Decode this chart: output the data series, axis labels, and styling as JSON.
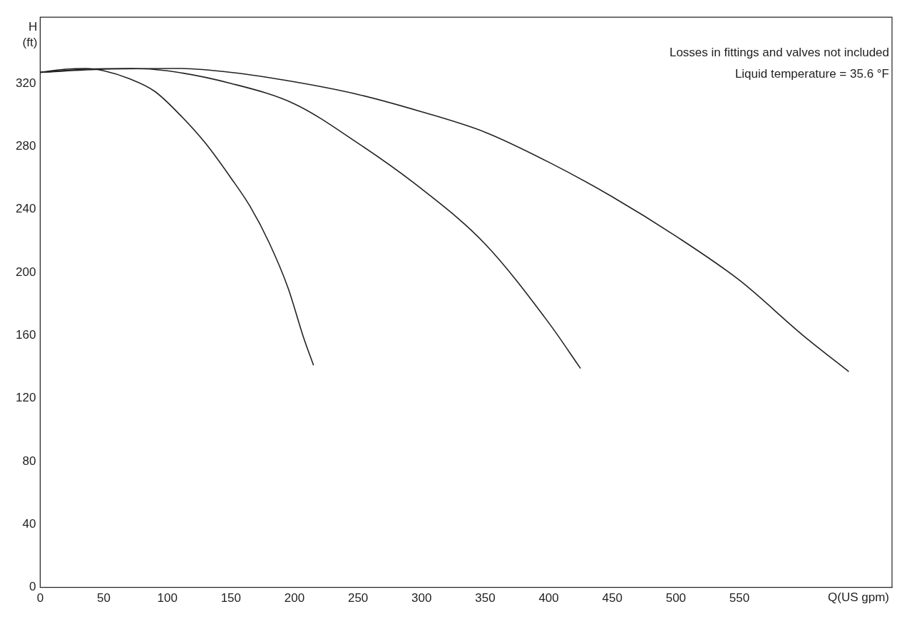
{
  "chart_data": {
    "type": "line",
    "xlabel": "Q(US gpm)",
    "ylabel": "H (ft)",
    "annotations": [
      "Losses in fittings and valves not included",
      "Liquid temperature = 35.6 °F"
    ],
    "series": [
      {
        "color": "#222222",
        "x": [
          0,
          20,
          36,
          50,
          70,
          90,
          110,
          130,
          150,
          165,
          180,
          195,
          207,
          215
        ],
        "values": [
          327,
          329,
          329.5,
          328,
          323,
          315,
          300,
          282,
          260,
          242,
          219,
          190,
          159,
          141
        ]
      },
      {
        "color": "#222222",
        "x": [
          0,
          36,
          72,
          100,
          150,
          200,
          250,
          300,
          350,
          400,
          425
        ],
        "values": [
          327,
          329,
          329.5,
          328,
          320,
          307,
          282,
          253,
          218,
          168,
          139
        ]
      },
      {
        "color": "#222222",
        "x": [
          0,
          50,
          108,
          150,
          200,
          250,
          300,
          350,
          400,
          450,
          500,
          550,
          600,
          636
        ],
        "values": [
          327,
          329,
          329.5,
          327,
          321,
          313,
          302,
          289,
          270,
          248,
          223,
          195,
          160,
          137
        ]
      }
    ],
    "xlim": [
      0,
      670
    ],
    "xticks": [
      0,
      50,
      100,
      150,
      200,
      250,
      300,
      350,
      400,
      450,
      500,
      550
    ],
    "ylim": [
      0,
      362
    ],
    "yticks": [
      0,
      40,
      80,
      120,
      160,
      200,
      240,
      280,
      320
    ],
    "marker": "none",
    "line_style": "solid"
  }
}
